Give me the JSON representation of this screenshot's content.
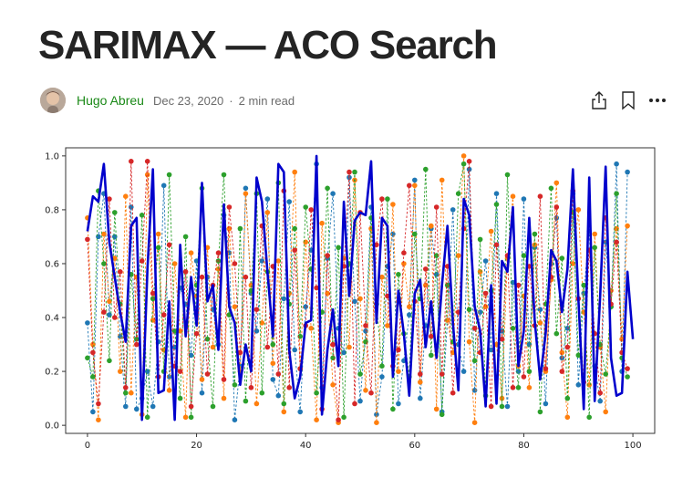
{
  "article": {
    "title": "SARIMAX — ACO Search",
    "author": "Hugo Abreu",
    "date": "Dec 23, 2020",
    "separator": "·",
    "read_time": "2 min read"
  },
  "actions": [
    {
      "name": "share-button",
      "icon": "share-icon"
    },
    {
      "name": "bookmark-button",
      "icon": "bookmark-icon"
    },
    {
      "name": "more-button",
      "icon": "more-icon"
    }
  ],
  "colors": {
    "title": "#242424",
    "author": "#1a8917",
    "meta": "#6b6b6b",
    "series": [
      "#1f77b4",
      "#ff7f0e",
      "#2ca02c",
      "#d62728",
      "#0000cc"
    ]
  },
  "chart_data": {
    "type": "line",
    "title": "",
    "xlabel": "",
    "ylabel": "",
    "xlim": [
      -4,
      104
    ],
    "ylim": [
      -0.03,
      1.03
    ],
    "x_ticks": [
      0,
      20,
      40,
      60,
      80,
      100
    ],
    "y_ticks": [
      0.0,
      0.2,
      0.4,
      0.6,
      0.8,
      1.0
    ],
    "x_tick_labels": [
      "0",
      "20",
      "40",
      "60",
      "80",
      "100"
    ],
    "y_tick_labels": [
      "0.0",
      "0.2",
      "0.4",
      "0.6",
      "0.8",
      "1.0"
    ],
    "grid": false,
    "legend": "none",
    "series": [
      {
        "color": "#1f77b4",
        "style": "dashed-markers",
        "values": [
          0.38,
          0.05,
          0.7,
          0.86,
          0.41,
          0.7,
          0.33,
          0.07,
          0.81,
          0.06,
          0.1,
          0.2,
          0.07,
          0.31,
          0.89,
          0.18,
          0.29,
          0.51,
          0.45,
          0.26,
          0.61,
          0.12,
          0.55,
          0.43,
          0.3,
          0.78,
          0.64,
          0.02,
          0.22,
          0.88,
          0.49,
          0.35,
          0.61,
          0.84,
          0.17,
          0.11,
          0.47,
          0.83,
          0.28,
          0.05,
          0.44,
          0.65,
          0.97,
          0.14,
          0.62,
          0.86,
          0.36,
          0.27,
          0.92,
          0.46,
          0.09,
          0.35,
          0.81,
          0.04,
          0.18,
          0.59,
          0.71,
          0.08,
          0.24,
          0.41,
          0.91,
          0.1,
          0.37,
          0.73,
          0.56,
          0.05,
          0.39,
          0.8,
          0.3,
          0.2,
          0.95,
          0.13,
          0.42,
          0.61,
          0.28,
          0.86,
          0.35,
          0.07,
          0.53,
          0.2,
          0.84,
          0.3,
          0.66,
          0.43,
          0.08,
          0.6,
          0.77,
          0.25,
          0.36,
          0.86,
          0.15,
          0.49,
          0.72,
          0.22,
          0.09,
          0.68,
          0.44,
          0.97,
          0.2,
          0.94
        ]
      },
      {
        "color": "#ff7f0e",
        "style": "dashed-markers",
        "values": [
          0.77,
          0.3,
          0.02,
          0.71,
          0.46,
          0.62,
          0.2,
          0.85,
          0.12,
          0.55,
          0.04,
          0.93,
          0.39,
          0.71,
          0.28,
          0.13,
          0.6,
          0.35,
          0.03,
          0.64,
          0.48,
          0.17,
          0.66,
          0.29,
          0.58,
          0.1,
          0.73,
          0.44,
          0.2,
          0.86,
          0.52,
          0.08,
          0.38,
          0.79,
          0.23,
          0.61,
          0.05,
          0.49,
          0.94,
          0.21,
          0.68,
          0.36,
          0.02,
          0.75,
          0.49,
          0.15,
          0.01,
          0.62,
          0.29,
          0.91,
          0.47,
          0.13,
          0.73,
          0.01,
          0.55,
          0.37,
          0.82,
          0.2,
          0.6,
          0.44,
          0.89,
          0.16,
          0.52,
          0.74,
          0.06,
          0.91,
          0.39,
          0.27,
          0.63,
          1.0,
          0.31,
          0.01,
          0.57,
          0.44,
          0.72,
          0.3,
          0.1,
          0.62,
          0.85,
          0.22,
          0.48,
          0.14,
          0.67,
          0.38,
          0.2,
          0.54,
          0.9,
          0.27,
          0.03,
          0.6,
          0.8,
          0.42,
          0.15,
          0.71,
          0.29,
          0.05,
          0.5,
          0.73,
          0.32,
          0.74
        ]
      },
      {
        "color": "#2ca02c",
        "style": "dashed-markers",
        "values": [
          0.25,
          0.18,
          0.87,
          0.6,
          0.24,
          0.79,
          0.45,
          0.12,
          0.56,
          0.32,
          0.78,
          0.03,
          0.47,
          0.66,
          0.2,
          0.93,
          0.35,
          0.1,
          0.7,
          0.03,
          0.52,
          0.88,
          0.32,
          0.07,
          0.61,
          0.93,
          0.41,
          0.15,
          0.73,
          0.09,
          0.5,
          0.86,
          0.12,
          0.57,
          0.3,
          0.9,
          0.08,
          0.45,
          0.73,
          0.33,
          0.81,
          0.58,
          0.12,
          0.42,
          0.88,
          0.25,
          0.66,
          0.03,
          0.6,
          0.94,
          0.19,
          0.31,
          0.77,
          0.45,
          0.22,
          0.84,
          0.06,
          0.56,
          0.34,
          0.18,
          0.71,
          0.47,
          0.95,
          0.26,
          0.63,
          0.04,
          0.52,
          0.31,
          0.86,
          0.97,
          0.43,
          0.24,
          0.69,
          0.11,
          0.5,
          0.82,
          0.07,
          0.93,
          0.36,
          0.14,
          0.63,
          0.2,
          0.71,
          0.05,
          0.45,
          0.88,
          0.34,
          0.62,
          0.1,
          0.79,
          0.26,
          0.52,
          0.03,
          0.66,
          0.3,
          0.19,
          0.44,
          0.86,
          0.25,
          0.18
        ]
      },
      {
        "color": "#d62728",
        "style": "dashed-markers",
        "values": [
          0.69,
          0.27,
          0.08,
          0.42,
          0.84,
          0.4,
          0.57,
          0.14,
          0.98,
          0.3,
          0.61,
          0.98,
          0.49,
          0.18,
          0.41,
          0.67,
          0.22,
          0.2,
          0.57,
          0.07,
          0.34,
          0.55,
          0.19,
          0.52,
          0.64,
          0.17,
          0.81,
          0.6,
          0.27,
          0.55,
          0.14,
          0.43,
          0.74,
          0.29,
          0.59,
          0.19,
          0.87,
          0.14,
          0.65,
          0.21,
          0.37,
          0.8,
          0.51,
          0.06,
          0.63,
          0.3,
          0.02,
          0.59,
          0.94,
          0.08,
          0.79,
          0.37,
          0.12,
          0.67,
          0.84,
          0.48,
          0.22,
          0.28,
          0.64,
          0.89,
          0.46,
          0.19,
          0.58,
          0.33,
          0.81,
          0.19,
          0.59,
          0.12,
          0.42,
          0.73,
          0.98,
          0.36,
          0.27,
          0.49,
          0.07,
          0.67,
          0.32,
          0.63,
          0.14,
          0.52,
          0.18,
          0.59,
          0.37,
          0.85,
          0.21,
          0.55,
          0.81,
          0.2,
          0.29,
          0.87,
          0.47,
          0.16,
          0.65,
          0.34,
          0.12,
          0.77,
          0.45,
          0.68,
          0.27,
          0.21
        ]
      },
      {
        "color": "#0000cc",
        "style": "solid-thick",
        "values": [
          0.72,
          0.85,
          0.83,
          0.97,
          0.68,
          0.55,
          0.42,
          0.31,
          0.74,
          0.77,
          0.02,
          0.58,
          0.95,
          0.12,
          0.13,
          0.46,
          0.02,
          0.67,
          0.33,
          0.55,
          0.37,
          0.9,
          0.46,
          0.52,
          0.28,
          0.82,
          0.44,
          0.38,
          0.15,
          0.3,
          0.2,
          0.92,
          0.83,
          0.57,
          0.33,
          0.97,
          0.94,
          0.28,
          0.1,
          0.18,
          0.38,
          0.39,
          1.0,
          0.04,
          0.28,
          0.43,
          0.22,
          0.83,
          0.48,
          0.76,
          0.79,
          0.78,
          0.98,
          0.38,
          0.77,
          0.74,
          0.18,
          0.5,
          0.34,
          0.11,
          0.49,
          0.54,
          0.29,
          0.46,
          0.25,
          0.52,
          0.74,
          0.38,
          0.13,
          0.84,
          0.78,
          0.44,
          0.35,
          0.07,
          0.52,
          0.08,
          0.61,
          0.57,
          0.81,
          0.22,
          0.35,
          0.77,
          0.39,
          0.17,
          0.34,
          0.65,
          0.61,
          0.42,
          0.58,
          0.95,
          0.47,
          0.06,
          0.92,
          0.09,
          0.48,
          0.96,
          0.25,
          0.11,
          0.12,
          0.57,
          0.32
        ]
      }
    ]
  }
}
